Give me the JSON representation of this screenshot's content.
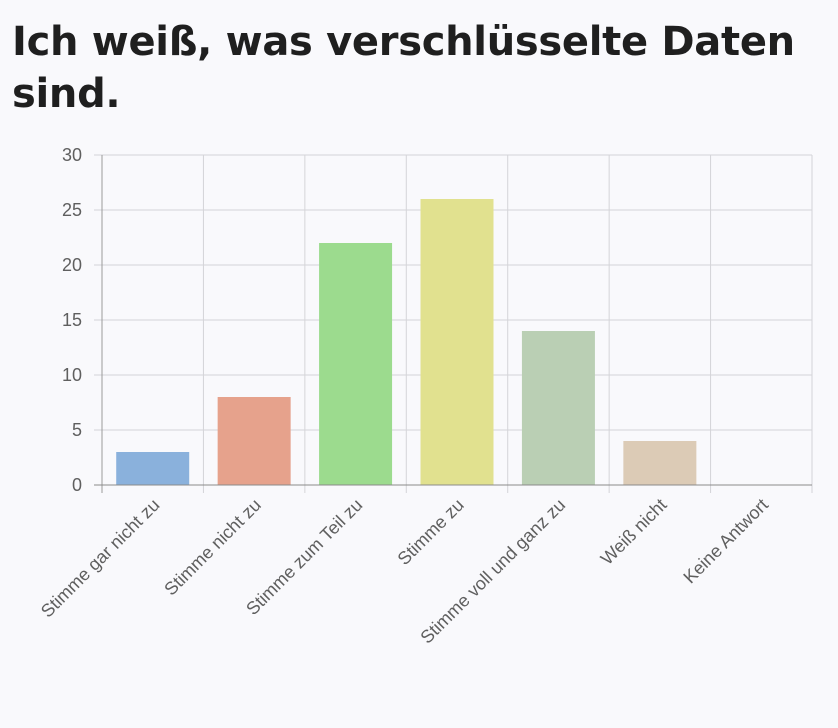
{
  "title": "Ich weiß, was verschlüsselte Daten sind.",
  "chart_data": {
    "type": "bar",
    "title": "Ich weiß, was verschlüsselte Daten sind.",
    "categories": [
      "Stimme gar nicht zu",
      "Stimme nicht zu",
      "Stimme zum Teil zu",
      "Stimme zu",
      "Stimme voll und ganz zu",
      "Weiß nicht",
      "Keine Antwort"
    ],
    "values": [
      3,
      8,
      22,
      26,
      14,
      4,
      0
    ],
    "colors": [
      "#8ab1dc",
      "#e6a28c",
      "#9cdb8e",
      "#e1e18f",
      "#bacfb4",
      "#dccbb6",
      "#cccccc"
    ],
    "ylim": [
      0,
      30
    ],
    "yticks": [
      0,
      5,
      10,
      15,
      20,
      25,
      30
    ],
    "xlabel": "",
    "ylabel": "",
    "grid": true,
    "legend": "none"
  }
}
